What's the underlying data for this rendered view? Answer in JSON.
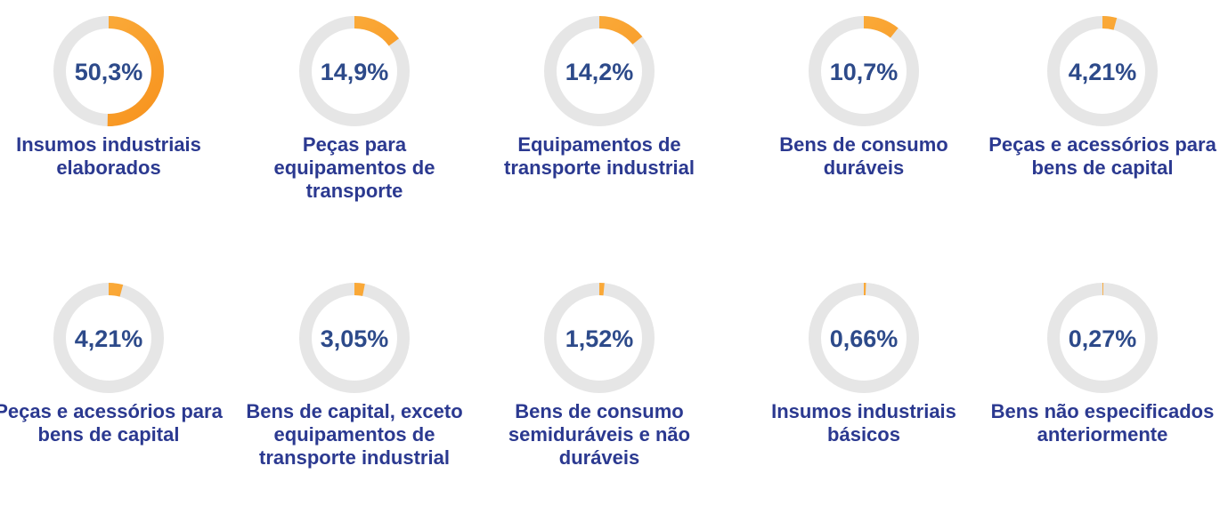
{
  "chart_data": [
    {
      "type": "donut",
      "title": "Insumos industriais elaborados",
      "values": [
        50.3
      ],
      "value_labels": [
        "50,3%"
      ],
      "color": "#f7931e",
      "track_color": "#e6e6e6"
    },
    {
      "type": "donut",
      "title": "Peças para equipamentos de transporte",
      "values": [
        14.9
      ],
      "value_labels": [
        "14,9%"
      ],
      "color": "#f7931e",
      "track_color": "#e6e6e6"
    },
    {
      "type": "donut",
      "title": "Equipamentos de transporte industrial",
      "values": [
        14.2
      ],
      "value_labels": [
        "14,2%"
      ],
      "color": "#f7931e",
      "track_color": "#e6e6e6"
    },
    {
      "type": "donut",
      "title": "Bens de consumo duráveis",
      "values": [
        10.7
      ],
      "value_labels": [
        "10,7%"
      ],
      "color": "#f7931e",
      "track_color": "#e6e6e6"
    },
    {
      "type": "donut",
      "title": "Peças e acessórios para bens de capital",
      "values": [
        4.21
      ],
      "value_labels": [
        "4,21%"
      ],
      "color": "#f7931e",
      "track_color": "#e6e6e6"
    },
    {
      "type": "donut",
      "title": "Peças e acessórios para bens de capital",
      "values": [
        4.21
      ],
      "value_labels": [
        "4,21%"
      ],
      "color": "#f7931e",
      "track_color": "#e6e6e6"
    },
    {
      "type": "donut",
      "title": "Bens de capital, exceto equipamentos de transporte industrial",
      "values": [
        3.05
      ],
      "value_labels": [
        "3,05%"
      ],
      "color": "#f7931e",
      "track_color": "#e6e6e6"
    },
    {
      "type": "donut",
      "title": "Bens de consumo semiduráveis e não duráveis",
      "values": [
        1.52
      ],
      "value_labels": [
        "1,52%"
      ],
      "color": "#f7931e",
      "track_color": "#e6e6e6"
    },
    {
      "type": "donut",
      "title": "Insumos industriais básicos",
      "values": [
        0.66
      ],
      "value_labels": [
        "0,66%"
      ],
      "color": "#f7931e",
      "track_color": "#e6e6e6"
    },
    {
      "type": "donut",
      "title": "Bens não especificados anteriormente",
      "values": [
        0.27
      ],
      "value_labels": [
        "0,27%"
      ],
      "color": "#f7931e",
      "track_color": "#e6e6e6"
    }
  ]
}
